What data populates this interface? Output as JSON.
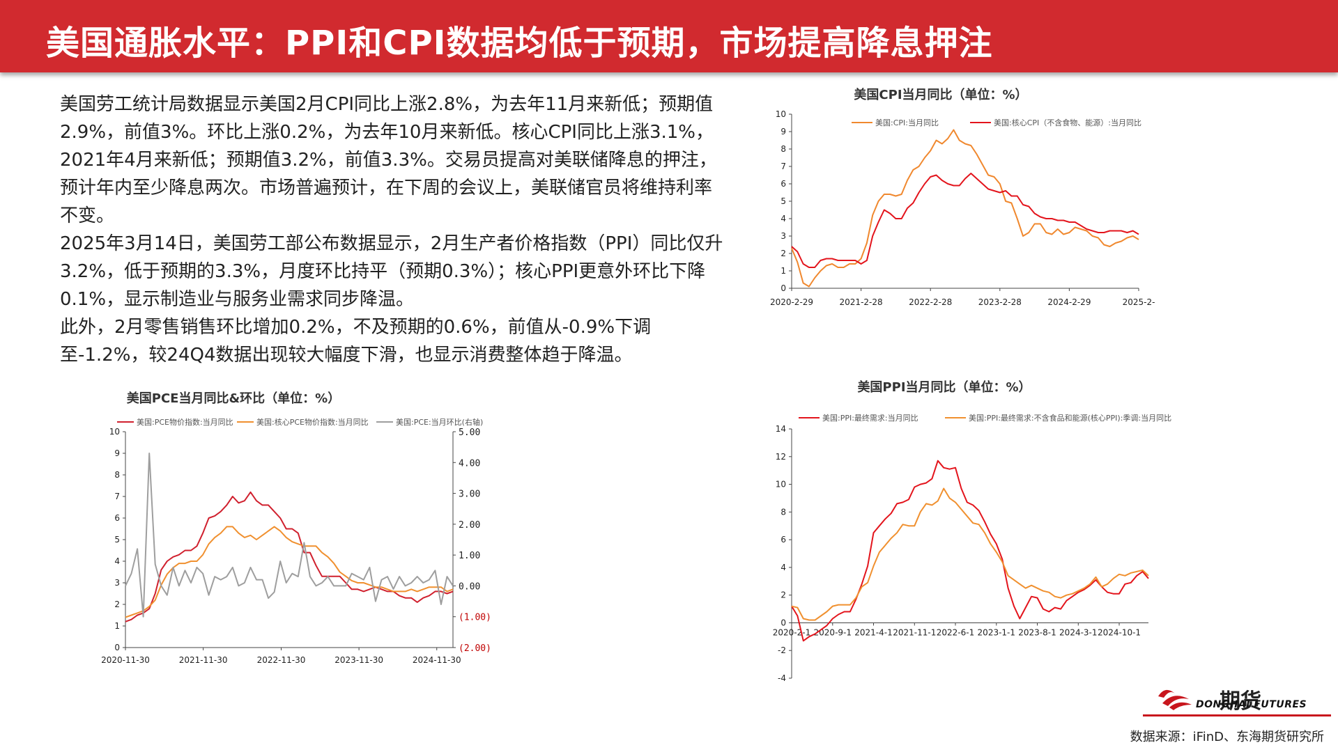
{
  "header": {
    "title": "美国通胀水平：PPI和CPI数据均低于预期，市场提高降息押注"
  },
  "body": {
    "paragraphs": [
      "美国劳工统计局数据显示美国2月CPI同比上涨2.8%，为去年11月来新低；预期值2.9%，前值3%。环比上涨0.2%，为去年10月来新低。核心CPI同比上涨3.1%，2021年4月来新低；预期值3.2%，前值3.3%。交易员提高对美联储降息的押注，预计年内至少降息两次。市场普遍预计，在下周的会议上，美联储官员将维持利率不变。",
      "2025年3月14日，美国劳工部公布数据显示，2月生产者价格指数（PPI）同比仅升3.2%，低于预期的3.3%，月度环比持平（预期0.3%）；核心PPI更意外环比下降0.1%，显示制造业与服务业需求同步降温。",
      "此外，2月零售销售环比增加0.2%，不及预期的0.6%，前值从-0.9%下调至-1.2%，较24Q4数据出现较大幅度下滑，也显示消费整体趋于降温。"
    ]
  },
  "chart_data": [
    {
      "id": "cpi",
      "type": "line",
      "title": "美国CPI当月同比（单位：%）",
      "x_ticks": [
        "2020-2-29",
        "2021-2-28",
        "2022-2-28",
        "2023-2-28",
        "2024-2-29",
        "2025-2-"
      ],
      "ylim": [
        0,
        10
      ],
      "y_ticks": [
        "0",
        "1",
        "2",
        "3",
        "4",
        "5",
        "6",
        "7",
        "8",
        "9",
        "10"
      ],
      "series": [
        {
          "name": "美国:CPI:当月同比",
          "color": "#f0882e",
          "values": [
            2.3,
            1.5,
            0.3,
            0.1,
            0.6,
            1.0,
            1.3,
            1.4,
            1.2,
            1.2,
            1.4,
            1.4,
            1.7,
            2.6,
            4.2,
            5.0,
            5.4,
            5.4,
            5.3,
            5.4,
            6.2,
            6.8,
            7.0,
            7.5,
            7.9,
            8.5,
            8.3,
            8.6,
            9.1,
            8.5,
            8.3,
            8.2,
            7.7,
            7.1,
            6.5,
            6.4,
            6.0,
            5.0,
            4.9,
            4.0,
            3.0,
            3.2,
            3.7,
            3.7,
            3.2,
            3.1,
            3.4,
            3.1,
            3.2,
            3.5,
            3.4,
            3.3,
            3.0,
            2.9,
            2.5,
            2.4,
            2.6,
            2.7,
            2.9,
            3.0,
            2.8
          ]
        },
        {
          "name": "美国:核心CPI（不含食物、能源）:当月同比",
          "color": "#e3141c",
          "values": [
            2.4,
            2.1,
            1.4,
            1.2,
            1.2,
            1.6,
            1.7,
            1.7,
            1.6,
            1.6,
            1.6,
            1.6,
            1.4,
            1.6,
            3.0,
            3.8,
            4.5,
            4.3,
            4.0,
            4.0,
            4.6,
            4.9,
            5.5,
            6.0,
            6.4,
            6.5,
            6.2,
            6.0,
            5.9,
            5.9,
            6.3,
            6.6,
            6.3,
            6.0,
            5.7,
            5.6,
            5.5,
            5.6,
            5.3,
            5.3,
            4.8,
            4.7,
            4.3,
            4.1,
            4.0,
            4.0,
            3.9,
            3.9,
            3.8,
            3.8,
            3.6,
            3.4,
            3.3,
            3.2,
            3.2,
            3.3,
            3.3,
            3.3,
            3.2,
            3.3,
            3.1
          ]
        }
      ]
    },
    {
      "id": "pce",
      "type": "line",
      "title": "美国PCE当月同比&环比（单位：%）",
      "x_ticks": [
        "2020-11-30",
        "2021-11-30",
        "2022-11-30",
        "2023-11-30",
        "2024-11-30"
      ],
      "ylim": [
        0,
        10
      ],
      "y_ticks": [
        "0",
        "1",
        "2",
        "3",
        "4",
        "5",
        "6",
        "7",
        "8",
        "9",
        "10"
      ],
      "y2lim": [
        -2,
        5
      ],
      "y2_ticks": [
        "(2.00)",
        "(1.00)",
        "0.00",
        "1.00",
        "2.00",
        "3.00",
        "4.00",
        "5.00"
      ],
      "series": [
        {
          "name": "美国:PCE物价指数:当月同比",
          "color": "#d0202e",
          "axis": "left",
          "values": [
            1.2,
            1.3,
            1.5,
            1.6,
            1.8,
            2.5,
            3.6,
            4.0,
            4.2,
            4.3,
            4.5,
            4.5,
            4.7,
            5.3,
            6.0,
            6.1,
            6.3,
            6.6,
            7.0,
            6.7,
            6.8,
            7.2,
            6.8,
            6.6,
            6.6,
            6.3,
            6.0,
            5.5,
            5.5,
            5.3,
            4.4,
            4.4,
            3.8,
            3.3,
            3.3,
            3.3,
            3.3,
            3.0,
            2.7,
            2.7,
            2.6,
            2.7,
            2.8,
            2.7,
            2.6,
            2.6,
            2.4,
            2.3,
            2.3,
            2.1,
            2.3,
            2.4,
            2.6,
            2.6,
            2.5,
            2.6
          ]
        },
        {
          "name": "美国:核心PCE物价指数:当月同比",
          "color": "#f0902f",
          "axis": "left",
          "values": [
            1.4,
            1.5,
            1.6,
            1.7,
            1.9,
            2.2,
            2.9,
            3.4,
            3.7,
            3.9,
            3.9,
            4.0,
            4.0,
            4.3,
            4.8,
            5.1,
            5.3,
            5.6,
            5.6,
            5.3,
            5.1,
            5.2,
            5.0,
            5.2,
            5.4,
            5.6,
            5.4,
            5.1,
            4.9,
            4.8,
            4.7,
            4.7,
            4.7,
            4.4,
            4.2,
            3.9,
            3.5,
            3.3,
            3.1,
            3.0,
            3.0,
            2.9,
            2.8,
            2.8,
            2.7,
            2.6,
            2.6,
            2.6,
            2.7,
            2.6,
            2.7,
            2.8,
            2.8,
            2.8,
            2.6,
            2.7
          ]
        },
        {
          "name": "美国:PCE:当月环比(右轴)",
          "color": "#9e9e9e",
          "axis": "right",
          "values": [
            0.0,
            0.4,
            1.2,
            -1.0,
            4.3,
            0.7,
            0.0,
            -0.3,
            0.6,
            0.0,
            0.5,
            0.1,
            0.6,
            0.4,
            -0.3,
            0.3,
            0.2,
            0.3,
            0.6,
            0.0,
            0.1,
            0.6,
            0.2,
            0.2,
            -0.4,
            -0.2,
            0.8,
            0.1,
            0.4,
            0.3,
            1.4,
            0.3,
            0.0,
            0.1,
            0.3,
            0.0,
            0.0,
            0.0,
            0.4,
            0.3,
            0.2,
            0.6,
            -0.5,
            0.2,
            0.3,
            -0.1,
            0.3,
            0.0,
            0.1,
            0.3,
            0.1,
            0.2,
            0.5,
            -0.6,
            0.3,
            0.0
          ]
        }
      ]
    },
    {
      "id": "ppi",
      "type": "line",
      "title": "美国PPI当月同比（单位：%）",
      "x_ticks": [
        "2020-2-1",
        "2020-9-1",
        "2021-4-1",
        "2021-11-1",
        "2022-6-1",
        "2023-1-1",
        "2023-8-1",
        "2024-3-1",
        "2024-10-1"
      ],
      "ylim": [
        -4,
        14
      ],
      "y_ticks": [
        "-4",
        "-2",
        "0",
        "2",
        "4",
        "6",
        "8",
        "10",
        "12",
        "14"
      ],
      "series": [
        {
          "name": "美国:PPI:最终需求:当月同比",
          "color": "#e3141c",
          "values": [
            1.2,
            0.5,
            -1.3,
            -1.0,
            -0.8,
            -0.5,
            -0.2,
            0.3,
            0.6,
            0.8,
            0.8,
            1.7,
            2.8,
            4.1,
            6.5,
            7.0,
            7.5,
            7.9,
            8.6,
            8.7,
            8.9,
            9.8,
            10.0,
            10.1,
            10.4,
            11.7,
            11.2,
            11.1,
            11.2,
            9.7,
            8.7,
            8.5,
            8.1,
            7.3,
            6.4,
            5.7,
            4.6,
            2.5,
            1.2,
            0.3,
            1.1,
            1.9,
            1.8,
            1.0,
            0.8,
            1.1,
            1.0,
            1.6,
            1.9,
            2.2,
            2.4,
            2.7,
            3.1,
            2.6,
            2.2,
            2.1,
            2.1,
            2.8,
            2.9,
            3.4,
            3.7,
            3.2
          ]
        },
        {
          "name": "美国:PPI:最终需求:不含食品和能源(核心PPI):季调:当月同比",
          "color": "#f0902f",
          "values": [
            1.2,
            1.1,
            0.3,
            0.2,
            0.2,
            0.5,
            0.8,
            1.2,
            1.3,
            1.3,
            1.3,
            1.8,
            2.6,
            2.9,
            4.1,
            5.1,
            5.6,
            6.1,
            6.5,
            7.1,
            7.0,
            7.0,
            8.0,
            8.6,
            8.5,
            8.8,
            9.7,
            9.0,
            8.7,
            8.2,
            7.7,
            7.2,
            7.1,
            6.5,
            5.7,
            5.1,
            4.4,
            3.4,
            3.1,
            2.8,
            2.5,
            2.7,
            2.5,
            2.3,
            2.2,
            1.9,
            1.8,
            2.0,
            2.1,
            2.3,
            2.5,
            2.8,
            3.3,
            2.6,
            2.8,
            3.2,
            3.5,
            3.4,
            3.6,
            3.7,
            3.8,
            3.4
          ]
        }
      ]
    }
  ],
  "logo": {
    "brand": "期货",
    "en": "DONGHAI FUTURES"
  },
  "source": "数据来源：iFinD、东海期货研究所"
}
